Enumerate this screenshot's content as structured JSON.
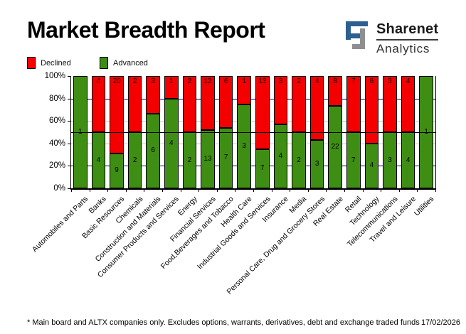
{
  "header": {
    "title": "Market Breadth Report"
  },
  "logo": {
    "line1": "Sharenet",
    "line2": "Analytics",
    "blue": "#2d608f",
    "gray": "#8d8f92"
  },
  "legend": [
    {
      "label": "Declined",
      "color": "#f40000"
    },
    {
      "label": "Advanced",
      "color": "#3f8e14"
    }
  ],
  "footer": {
    "note": "* Main board and ALTX companies only. Excludes options, warrants, derivatives, debt and exchange traded funds",
    "date": "17/02/2026"
  },
  "chart_data": {
    "type": "bar",
    "stacked": true,
    "normalized": "percent_of_total",
    "categories": [
      "Automobiles and Parts",
      "Banks",
      "Basic Resources",
      "Chemicals",
      "Construction and Materials",
      "Consumer Products and Services",
      "Energy",
      "Financial Services",
      "Food,Beverages and Tobacco",
      "Health Care",
      "Industrial Goods and Services",
      "Insurance",
      "Media",
      "Personal Care, Drug and Grocery Stores",
      "Real Estate",
      "Retail",
      "Technology",
      "Telecommunications",
      "Travel and Leisure",
      "Utilities"
    ],
    "series": [
      {
        "name": "Declined",
        "color": "#f40000",
        "values": [
          0,
          4,
          20,
          2,
          3,
          1,
          2,
          12,
          6,
          1,
          13,
          3,
          2,
          4,
          8,
          7,
          6,
          3,
          4,
          0
        ]
      },
      {
        "name": "Advanced",
        "color": "#3f8e14",
        "values": [
          1,
          4,
          9,
          2,
          6,
          4,
          2,
          13,
          7,
          3,
          7,
          4,
          2,
          3,
          22,
          7,
          4,
          3,
          4,
          1
        ]
      }
    ],
    "ylim": [
      0,
      100
    ],
    "yticks": [
      "0%",
      "20%",
      "40%",
      "60%",
      "80%",
      "100%"
    ],
    "gridlines": [
      {
        "pct": 20,
        "color": "#000080"
      },
      {
        "pct": 40,
        "color": "#c8c8c8"
      },
      {
        "pct": 60,
        "color": "#c8c8c8"
      },
      {
        "pct": 80,
        "color": "#000080"
      }
    ],
    "reference_line_pct": 50,
    "legend_position": "top-left",
    "bar_border_color": "#000000"
  }
}
